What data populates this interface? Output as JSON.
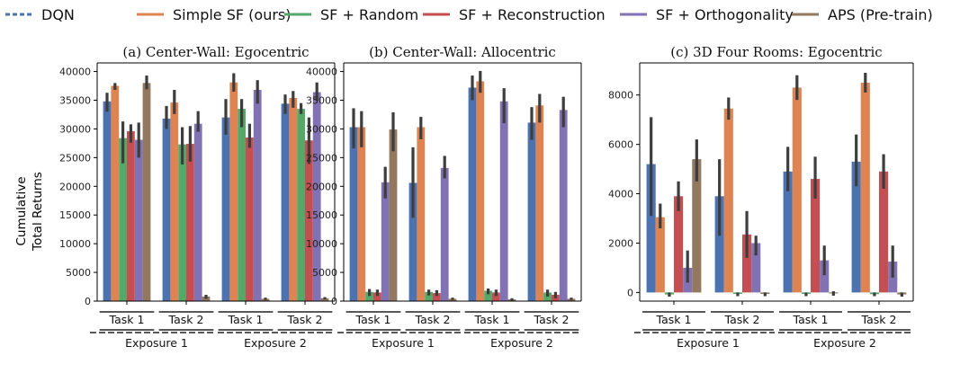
{
  "legend": [
    {
      "name": "DQN",
      "color": "#4c72b0",
      "style": "dashed"
    },
    {
      "name": "Simple SF (ours)",
      "color": "#dd8452",
      "style": "solid"
    },
    {
      "name": "SF + Random",
      "color": "#55a868",
      "style": "solid"
    },
    {
      "name": "SF + Reconstruction",
      "color": "#c44e52",
      "style": "solid"
    },
    {
      "name": "SF + Orthogonality",
      "color": "#8172b3",
      "style": "solid"
    },
    {
      "name": "APS (Pre-train)",
      "color": "#937860",
      "style": "solid"
    }
  ],
  "ylabel_line1": "Cumulative",
  "ylabel_line2": "Total Returns",
  "chart_data": [
    {
      "type": "bar",
      "title": "(a) Center-Wall: Egocentric",
      "categories": [
        "Task 1",
        "Task 2",
        "Task 1",
        "Task 2"
      ],
      "groups": [
        "Exposure 1",
        "Exposure 2"
      ],
      "ylim": [
        0,
        41500
      ],
      "yticks": [
        0,
        5000,
        10000,
        15000,
        20000,
        25000,
        30000,
        35000,
        40000
      ],
      "series": [
        {
          "name": "DQN",
          "values": [
            34800,
            31800,
            32000,
            34400
          ],
          "err": [
            [
              33000,
              36300
            ],
            [
              30000,
              34000
            ],
            [
              29000,
              35200
            ],
            [
              32600,
              36000
            ]
          ]
        },
        {
          "name": "Simple SF (ours)",
          "values": [
            37500,
            34600,
            38100,
            35400
          ],
          "err": [
            [
              36800,
              38000
            ],
            [
              32600,
              36800
            ],
            [
              36500,
              39700
            ],
            [
              33700,
              36600
            ]
          ]
        },
        {
          "name": "SF + Random",
          "values": [
            28400,
            27300,
            33500,
            33500
          ],
          "err": [
            [
              24000,
              31300
            ],
            [
              23800,
              30300
            ],
            [
              30300,
              35200
            ],
            [
              32600,
              34500
            ]
          ]
        },
        {
          "name": "SF + Reconstruction",
          "values": [
            29600,
            27400,
            28500,
            28000
          ],
          "err": [
            [
              27600,
              30800
            ],
            [
              24300,
              30500
            ],
            [
              26700,
              30900
            ],
            [
              23900,
              32000
            ]
          ]
        },
        {
          "name": "SF + Orthogonality",
          "values": [
            28100,
            30900,
            36800,
            36400
          ],
          "err": [
            [
              25000,
              31100
            ],
            [
              29500,
              33100
            ],
            [
              34400,
              38500
            ],
            [
              34900,
              38100
            ]
          ]
        },
        {
          "name": "APS (Pre-train)",
          "values": [
            38000,
            800,
            400,
            500
          ],
          "err": [
            [
              36900,
              39300
            ],
            [
              400,
              1100
            ],
            [
              200,
              600
            ],
            [
              300,
              700
            ]
          ]
        }
      ]
    },
    {
      "type": "bar",
      "title": "(b) Center-Wall: Allocentric",
      "categories": [
        "Task 1",
        "Task 2",
        "Task 1",
        "Task 2"
      ],
      "groups": [
        "Exposure 1",
        "Exposure 2"
      ],
      "ylim": [
        0,
        41500
      ],
      "yticks": [
        0,
        5000,
        10000,
        15000,
        20000,
        25000,
        30000,
        35000,
        40000
      ],
      "series": [
        {
          "name": "DQN",
          "values": [
            30300,
            20600,
            37200,
            31100
          ],
          "err": [
            [
              26600,
              33600
            ],
            [
              14500,
              26800
            ],
            [
              35000,
              39300
            ],
            [
              28100,
              33800
            ]
          ]
        },
        {
          "name": "Simple SF (ours)",
          "values": [
            30300,
            30300,
            38300,
            34100
          ],
          "err": [
            [
              26800,
              33100
            ],
            [
              28200,
              32100
            ],
            [
              36300,
              40100
            ],
            [
              31100,
              36100
            ]
          ]
        },
        {
          "name": "SF + Random",
          "values": [
            1600,
            1600,
            1800,
            1500
          ],
          "err": [
            [
              900,
              2100
            ],
            [
              1000,
              2000
            ],
            [
              1200,
              2200
            ],
            [
              800,
              2000
            ]
          ]
        },
        {
          "name": "SF + Reconstruction",
          "values": [
            1500,
            1400,
            1500,
            1100
          ],
          "err": [
            [
              900,
              2000
            ],
            [
              900,
              1900
            ],
            [
              900,
              2000
            ],
            [
              500,
              1600
            ]
          ]
        },
        {
          "name": "SF + Orthogonality",
          "values": [
            20700,
            23200,
            34800,
            33300
          ],
          "err": [
            [
              17900,
              23400
            ],
            [
              21400,
              25300
            ],
            [
              31000,
              37100
            ],
            [
              30300,
              35600
            ]
          ]
        },
        {
          "name": "APS (Pre-train)",
          "values": [
            29900,
            400,
            300,
            400
          ],
          "err": [
            [
              26100,
              32900
            ],
            [
              200,
              600
            ],
            [
              100,
              500
            ],
            [
              200,
              600
            ]
          ]
        }
      ]
    },
    {
      "type": "bar",
      "title": "(c) 3D Four Rooms: Egocentric",
      "categories": [
        "Task 1",
        "Task 2",
        "Task 1",
        "Task 2"
      ],
      "groups": [
        "Exposure 1",
        "Exposure 2"
      ],
      "ylim": [
        -350,
        9300
      ],
      "yticks": [
        0,
        2000,
        4000,
        6000,
        8000
      ],
      "series": [
        {
          "name": "DQN",
          "values": [
            5200,
            3900,
            4900,
            5300
          ],
          "err": [
            [
              3100,
              7100
            ],
            [
              2300,
              5400
            ],
            [
              4100,
              5900
            ],
            [
              4300,
              6400
            ]
          ]
        },
        {
          "name": "Simple SF (ours)",
          "values": [
            3050,
            7450,
            8300,
            8500
          ],
          "err": [
            [
              2600,
              3600
            ],
            [
              7000,
              7900
            ],
            [
              7800,
              8800
            ],
            [
              8100,
              8900
            ]
          ]
        },
        {
          "name": "SF + Random",
          "values": [
            -80,
            -60,
            -60,
            -70
          ],
          "err": [
            [
              -170,
              0
            ],
            [
              -150,
              0
            ],
            [
              -150,
              0
            ],
            [
              -150,
              0
            ]
          ]
        },
        {
          "name": "SF + Reconstruction",
          "values": [
            3900,
            2350,
            4600,
            4900
          ],
          "err": [
            [
              3300,
              4500
            ],
            [
              1400,
              3300
            ],
            [
              3800,
              5500
            ],
            [
              4200,
              5600
            ]
          ]
        },
        {
          "name": "SF + Orthogonality",
          "values": [
            1000,
            2000,
            1300,
            1250
          ],
          "err": [
            [
              400,
              1700
            ],
            [
              1500,
              2300
            ],
            [
              700,
              1900
            ],
            [
              600,
              1900
            ]
          ]
        },
        {
          "name": "APS (Pre-train)",
          "values": [
            5400,
            -60,
            -40,
            -80
          ],
          "err": [
            [
              4500,
              6200
            ],
            [
              -150,
              0
            ],
            [
              -130,
              50
            ],
            [
              -170,
              0
            ]
          ]
        }
      ]
    }
  ]
}
